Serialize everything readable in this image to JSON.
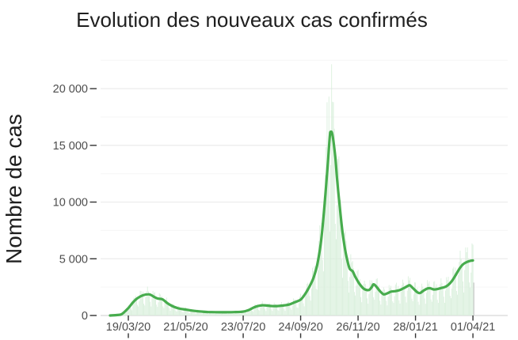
{
  "title": "Evolution des nouveaux cas confirmés",
  "colors": {
    "bar_fill": "#d8efdb",
    "line_stroke": "#47ac4d",
    "last_bar_fill": "#d2d2d2",
    "grid_major": "#ebebeb",
    "grid_minor": "#f6f6f6",
    "zero_line": "#d7d7d7",
    "tick_mark": "#333333",
    "tick_label": "#4d4d4d",
    "title_text": "#1f1f1f"
  },
  "chart_data": {
    "type": "bar",
    "title": "Evolution des nouveaux cas confirmés",
    "xlabel": "",
    "ylabel": "Nombre de cas",
    "legend": "none",
    "grid": "horizontal-major-and-minor",
    "ylim": [
      0,
      22660
    ],
    "x_day_domain": [
      0,
      403
    ],
    "x_tick_days": [
      24,
      87,
      150,
      213,
      276,
      339,
      402
    ],
    "x_tick_labels": [
      "19/03/20",
      "21/05/20",
      "23/07/20",
      "24/09/20",
      "26/11/20",
      "28/01/21",
      "01/04/21"
    ],
    "y_ticks": [
      0,
      5000,
      10000,
      15000,
      20000
    ],
    "y_tick_labels": [
      "0",
      "5 000",
      "10 000",
      "15 000",
      "20 000"
    ],
    "y_minor_ticks": [
      2500,
      7500,
      12500,
      17500,
      22500
    ],
    "series": [
      {
        "name": "daily-new-cases-bars",
        "type": "bar",
        "color": "#d8efdb"
      },
      {
        "name": "smoothed-average-line",
        "type": "line",
        "color": "#47ac4d"
      }
    ],
    "smoothed_line_points": [
      [
        4,
        0
      ],
      [
        12,
        40
      ],
      [
        17,
        130
      ],
      [
        24,
        650
      ],
      [
        29,
        1150
      ],
      [
        34,
        1520
      ],
      [
        40,
        1780
      ],
      [
        46,
        1870
      ],
      [
        49,
        1800
      ],
      [
        52,
        1650
      ],
      [
        56,
        1500
      ],
      [
        59,
        1470
      ],
      [
        62,
        1400
      ],
      [
        67,
        1080
      ],
      [
        72,
        840
      ],
      [
        79,
        630
      ],
      [
        87,
        520
      ],
      [
        94,
        430
      ],
      [
        102,
        360
      ],
      [
        111,
        310
      ],
      [
        120,
        295
      ],
      [
        130,
        288
      ],
      [
        140,
        300
      ],
      [
        150,
        340
      ],
      [
        156,
        480
      ],
      [
        161,
        680
      ],
      [
        166,
        830
      ],
      [
        171,
        900
      ],
      [
        176,
        875
      ],
      [
        181,
        840
      ],
      [
        187,
        830
      ],
      [
        193,
        870
      ],
      [
        200,
        960
      ],
      [
        206,
        1150
      ],
      [
        213,
        1400
      ],
      [
        218,
        1900
      ],
      [
        223,
        2600
      ],
      [
        227,
        3300
      ],
      [
        231,
        4400
      ],
      [
        235,
        6300
      ],
      [
        238,
        8600
      ],
      [
        241,
        11500
      ],
      [
        243,
        13600
      ],
      [
        245,
        15800
      ],
      [
        246,
        16200
      ],
      [
        248,
        15900
      ],
      [
        251,
        14000
      ],
      [
        253,
        12000
      ],
      [
        256,
        9500
      ],
      [
        259,
        7300
      ],
      [
        262,
        5700
      ],
      [
        265,
        4600
      ],
      [
        267,
        4100
      ],
      [
        270,
        3900
      ],
      [
        273,
        3400
      ],
      [
        277,
        2850
      ],
      [
        281,
        2450
      ],
      [
        284,
        2280
      ],
      [
        288,
        2250
      ],
      [
        291,
        2500
      ],
      [
        293,
        2750
      ],
      [
        296,
        2550
      ],
      [
        300,
        2150
      ],
      [
        304,
        1870
      ],
      [
        308,
        1950
      ],
      [
        312,
        2100
      ],
      [
        317,
        2150
      ],
      [
        322,
        2250
      ],
      [
        327,
        2450
      ],
      [
        331,
        2620
      ],
      [
        333,
        2650
      ],
      [
        337,
        2350
      ],
      [
        341,
        2050
      ],
      [
        344,
        1980
      ],
      [
        348,
        2200
      ],
      [
        352,
        2380
      ],
      [
        355,
        2400
      ],
      [
        359,
        2300
      ],
      [
        363,
        2330
      ],
      [
        367,
        2420
      ],
      [
        371,
        2500
      ],
      [
        375,
        2700
      ],
      [
        379,
        3050
      ],
      [
        383,
        3550
      ],
      [
        387,
        4100
      ],
      [
        391,
        4500
      ],
      [
        395,
        4700
      ],
      [
        399,
        4820
      ],
      [
        402,
        4850
      ]
    ],
    "daily_bars": {
      "derived_from": "smoothed_line_points",
      "day_range": [
        2,
        402
      ],
      "weekly_pattern": [
        0.48,
        0.85,
        1.25,
        1.28,
        1.18,
        1.1,
        0.62
      ],
      "noise_amplitude": 0.08,
      "noise_frequency": 2.399,
      "spike_overrides": {
        "242": 18800,
        "244": 19300,
        "247": 22150,
        "249": 18800
      }
    },
    "last_bar": {
      "day": 403,
      "value": 2900,
      "color": "#d2d2d2"
    }
  }
}
